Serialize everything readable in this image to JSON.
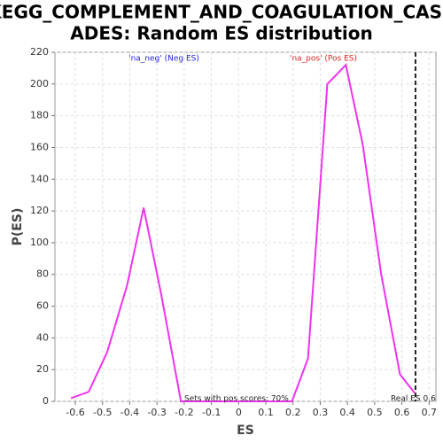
{
  "chart_data": {
    "type": "line",
    "title": [
      "KEGG_COMPLEMENT_AND_COAGULATION_CASC",
      "ADES: Random ES distribution"
    ],
    "x_label": "ES",
    "y_label": "P(ES)",
    "x": [
      -0.616,
      -0.551,
      -0.483,
      -0.41,
      -0.349,
      -0.284,
      -0.212,
      0.196,
      0.255,
      0.326,
      0.394,
      0.456,
      0.524,
      0.593,
      0.648
    ],
    "series": [
      {
        "name": null,
        "color": "#ee33ee",
        "values": [
          2,
          6,
          31,
          73,
          122,
          67,
          0,
          0,
          27,
          200,
          212,
          162,
          80,
          17,
          5
        ]
      }
    ],
    "xlim": [
      -0.675,
      0.725
    ],
    "xticks": [
      -0.6,
      -0.5,
      -0.4,
      -0.3,
      -0.2,
      -0.1,
      0,
      0.1,
      0.2,
      0.3,
      0.4,
      0.5,
      0.6,
      0.7
    ],
    "ylim": [
      0,
      220
    ],
    "yticks": [
      0,
      20,
      40,
      60,
      80,
      100,
      120,
      140,
      160,
      180,
      200,
      220
    ],
    "grid": true,
    "real_es": {
      "value": 0.65,
      "label": "Real ES 0.6"
    },
    "annotations": [
      {
        "text": "'na_neg' (Neg ES)",
        "color": "#2222dd"
      },
      {
        "text": "'na_pos' (Pos ES)",
        "color": "#dd2222"
      },
      {
        "text": "Sets with pos scores: 70%",
        "color": "#222222"
      }
    ]
  }
}
